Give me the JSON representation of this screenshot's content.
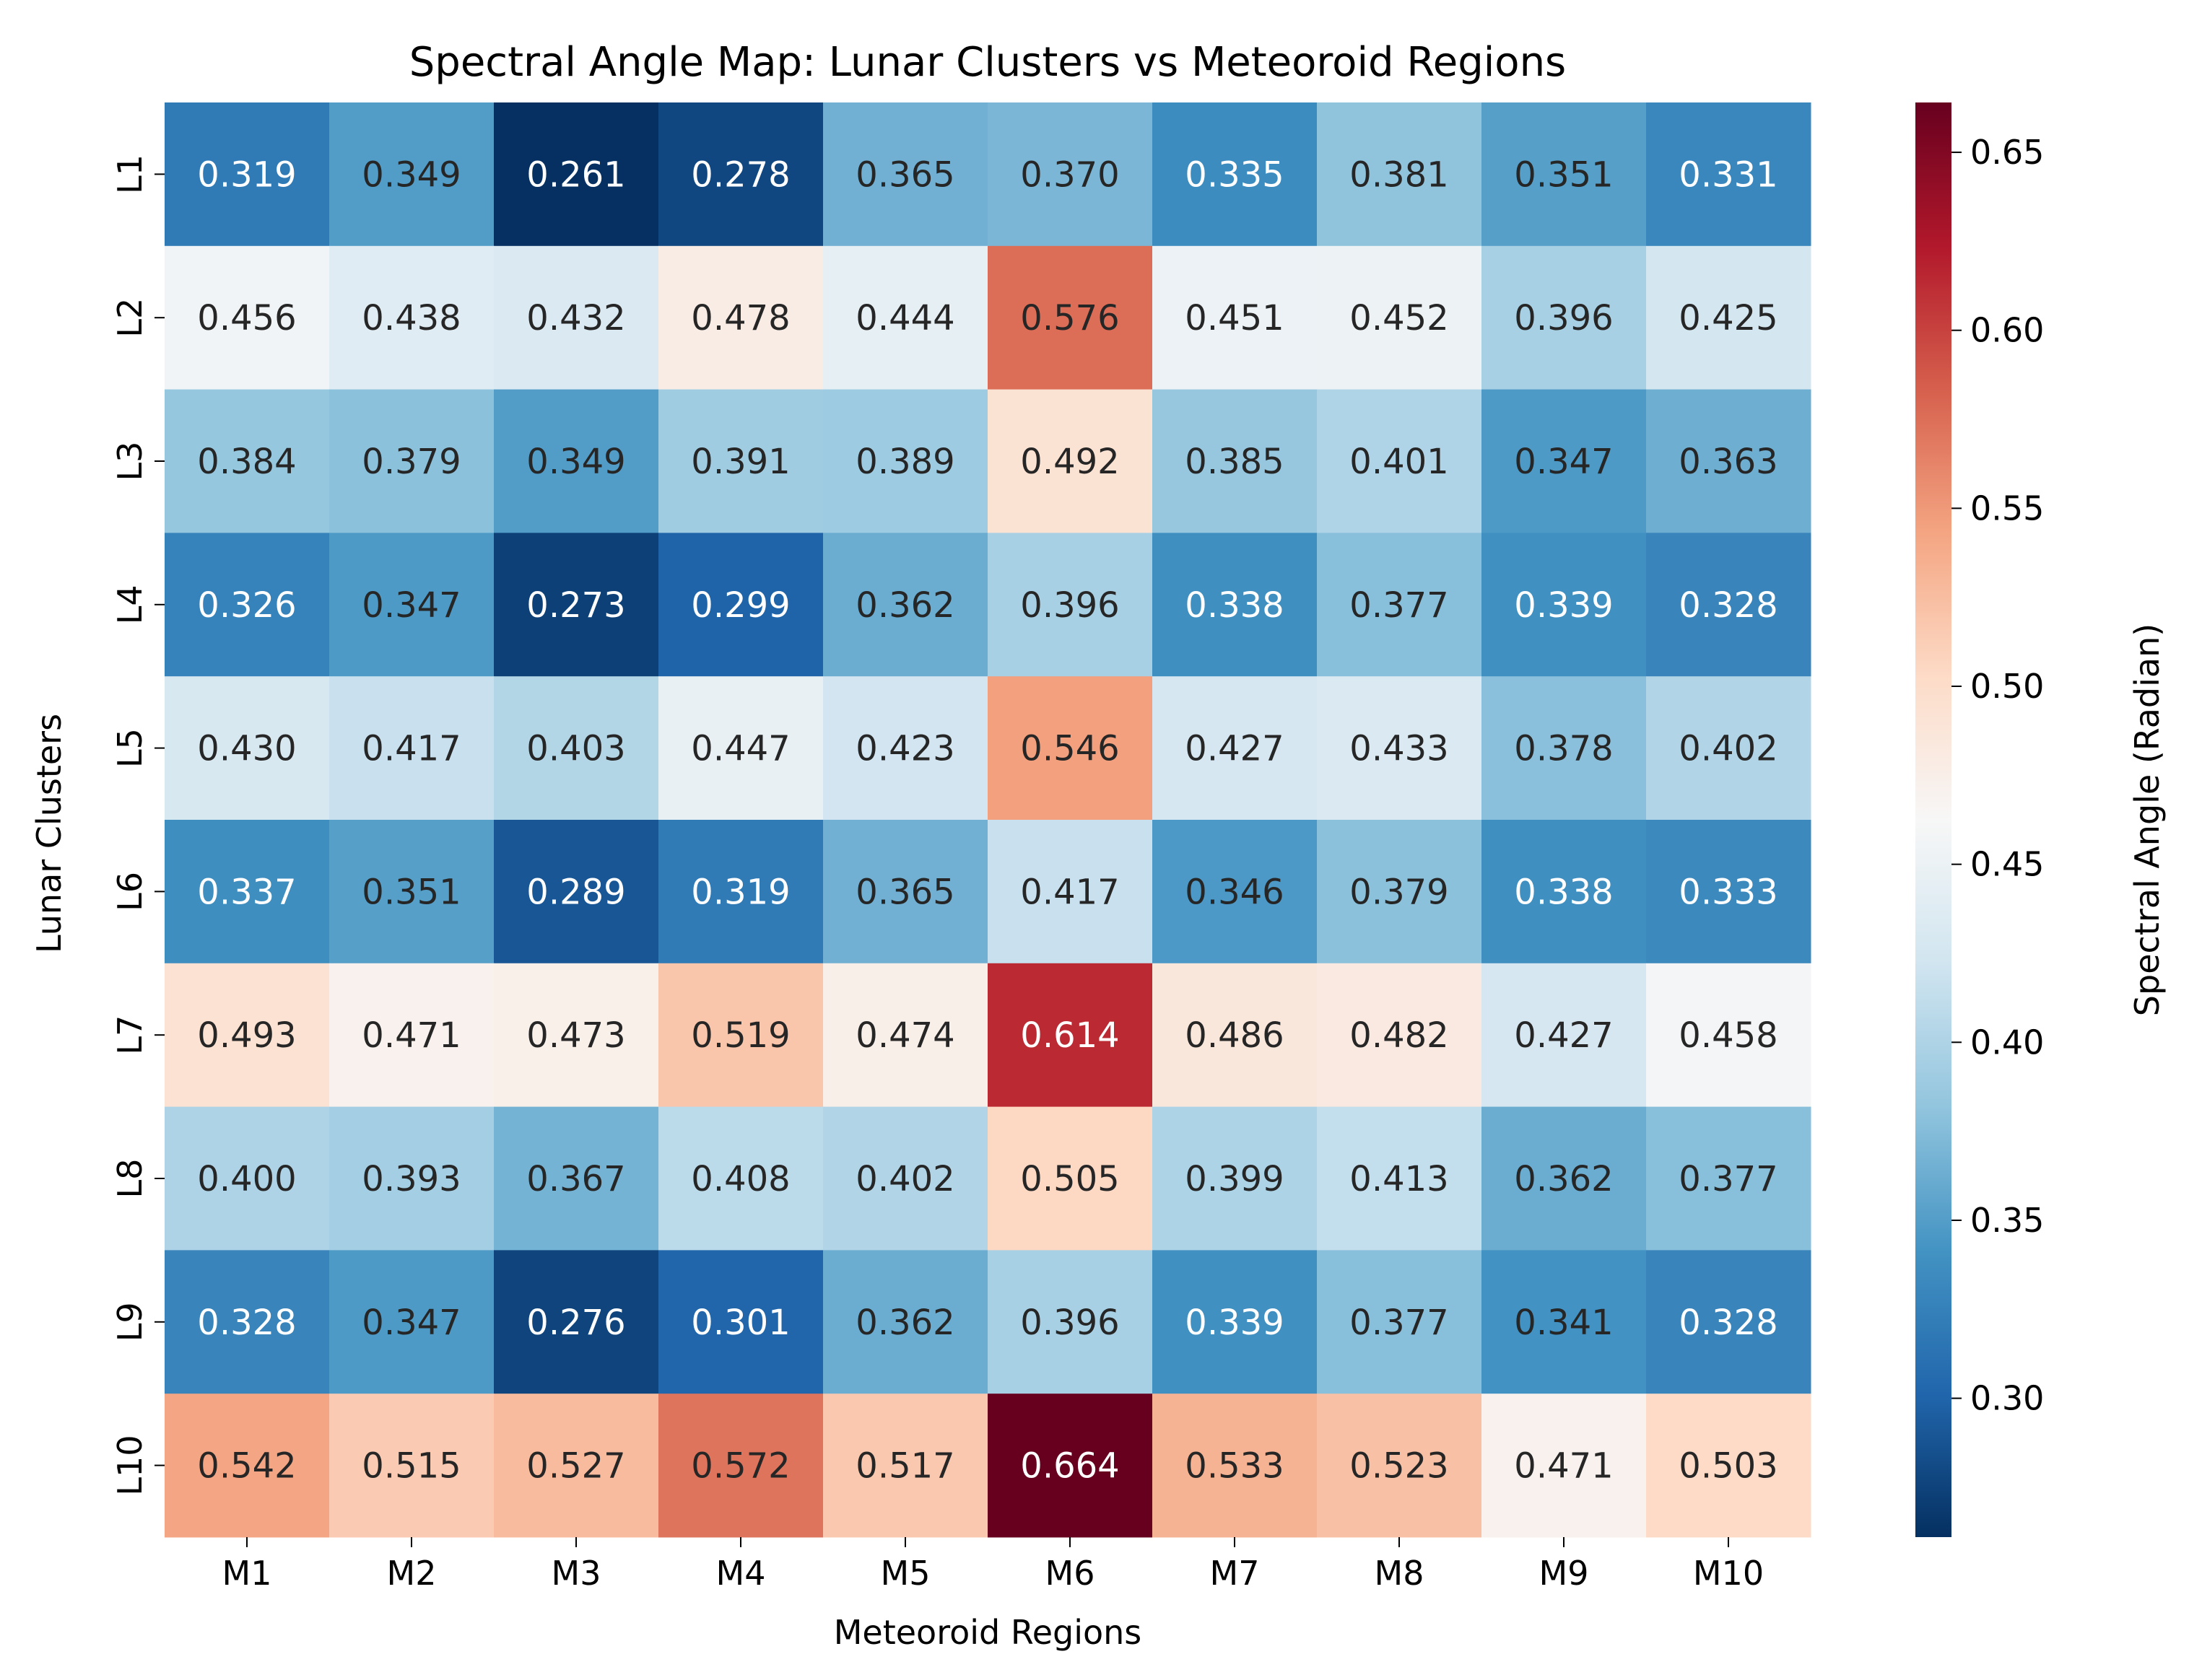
{
  "chart_data": {
    "type": "heatmap",
    "title": "Spectral Angle Map: Lunar Clusters vs Meteoroid Regions",
    "xlabel": "Meteoroid Regions",
    "ylabel": "Lunar Clusters",
    "x_categories": [
      "M1",
      "M2",
      "M3",
      "M4",
      "M5",
      "M6",
      "M7",
      "M8",
      "M9",
      "M10"
    ],
    "y_categories": [
      "L1",
      "L2",
      "L3",
      "L4",
      "L5",
      "L6",
      "L7",
      "L8",
      "L9",
      "L10"
    ],
    "values": [
      [
        0.319,
        0.349,
        0.261,
        0.278,
        0.365,
        0.37,
        0.335,
        0.381,
        0.351,
        0.331
      ],
      [
        0.456,
        0.438,
        0.432,
        0.478,
        0.444,
        0.576,
        0.451,
        0.452,
        0.396,
        0.425
      ],
      [
        0.384,
        0.379,
        0.349,
        0.391,
        0.389,
        0.492,
        0.385,
        0.401,
        0.347,
        0.363
      ],
      [
        0.326,
        0.347,
        0.273,
        0.299,
        0.362,
        0.396,
        0.338,
        0.377,
        0.339,
        0.328
      ],
      [
        0.43,
        0.417,
        0.403,
        0.447,
        0.423,
        0.546,
        0.427,
        0.433,
        0.378,
        0.402
      ],
      [
        0.337,
        0.351,
        0.289,
        0.319,
        0.365,
        0.417,
        0.346,
        0.379,
        0.338,
        0.333
      ],
      [
        0.493,
        0.471,
        0.473,
        0.519,
        0.474,
        0.614,
        0.486,
        0.482,
        0.427,
        0.458
      ],
      [
        0.4,
        0.393,
        0.367,
        0.408,
        0.402,
        0.505,
        0.399,
        0.413,
        0.362,
        0.377
      ],
      [
        0.328,
        0.347,
        0.276,
        0.301,
        0.362,
        0.396,
        0.339,
        0.377,
        0.341,
        0.328
      ],
      [
        0.542,
        0.515,
        0.527,
        0.572,
        0.517,
        0.664,
        0.533,
        0.523,
        0.471,
        0.503
      ]
    ],
    "value_format": "3 decimals",
    "colormap": "RdBu_r",
    "colormap_stops": [
      "#053061",
      "#2166ac",
      "#4393c3",
      "#92c5de",
      "#d1e5f0",
      "#f7f7f7",
      "#fddbc7",
      "#f4a582",
      "#d6604d",
      "#b2182b",
      "#67001f"
    ],
    "vmin": 0.261,
    "vmax": 0.664,
    "colorbar": {
      "label": "Spectral Angle (Radian)",
      "ticks": [
        0.3,
        0.35,
        0.4,
        0.45,
        0.5,
        0.55,
        0.6,
        0.65
      ],
      "tick_labels": [
        "0.30",
        "0.35",
        "0.40",
        "0.45",
        "0.50",
        "0.55",
        "0.60",
        "0.65"
      ],
      "placement": "right"
    },
    "annotation_colors": {
      "dark_bg": "#ffffff",
      "light_bg": "#262626"
    },
    "grid": false
  }
}
